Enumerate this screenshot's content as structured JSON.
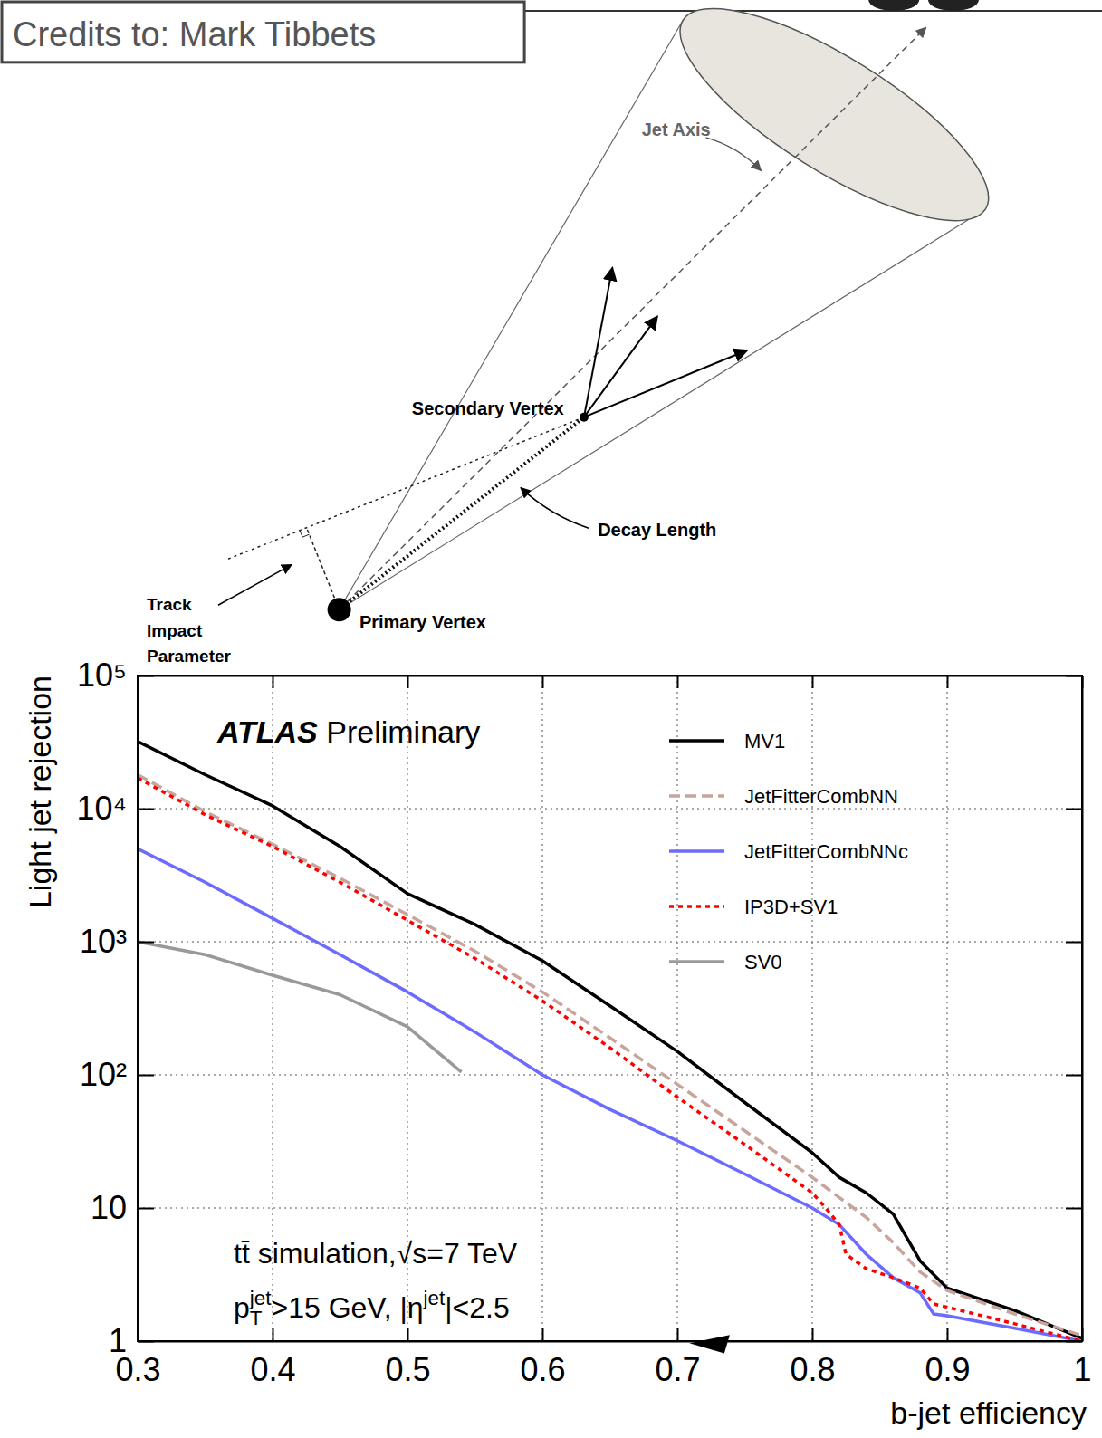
{
  "diagram": {
    "credit": "Credits to: Mark Tibbets",
    "labels": {
      "jet_axis": "Jet Axis",
      "secondary_vertex": "Secondary Vertex",
      "decay_length": "Decay Length",
      "track_impact_parameter": [
        "Track",
        "Impact",
        "Parameter"
      ],
      "primary_vertex": "Primary Vertex"
    }
  },
  "chart_data": {
    "type": "line",
    "title": "ATLAS Preliminary",
    "x_label": "b-jet efficiency",
    "y_label": "Light jet rejection",
    "annotations": [
      [
        "tt̄ simulation,√s=7 TeV"
      ],
      [
        "p",
        {
          "sub": "T",
          "sup": "jet"
        },
        ">15 GeV, |η",
        {
          "sup": "jet"
        },
        "|<2.5"
      ]
    ],
    "xlim": [
      0.3,
      1
    ],
    "xticks": [
      0.3,
      0.4,
      0.5,
      0.6,
      0.7,
      0.8,
      0.9,
      1
    ],
    "ylim": [
      1,
      100000
    ],
    "yticks": [
      1,
      10,
      {
        "value": 100,
        "label": "10²"
      },
      {
        "value": 1000,
        "label": "10³"
      },
      {
        "value": 10000,
        "label": "10⁴"
      },
      {
        "value": 100000,
        "label": "10⁵"
      }
    ],
    "log": "y",
    "grid": true,
    "legend": "upper right",
    "series": [
      {
        "name": "MV1",
        "color": "#000000",
        "line_style": "solid",
        "x": [
          0.3,
          0.35,
          0.4,
          0.45,
          0.5,
          0.55,
          0.6,
          0.65,
          0.7,
          0.75,
          0.8,
          0.82,
          0.84,
          0.86,
          0.87,
          0.88,
          0.9,
          0.95,
          1.0
        ],
        "values": [
          32000,
          18000,
          10500,
          5200,
          2300,
          1350,
          720,
          330,
          150,
          62,
          26,
          17,
          13,
          9,
          6,
          4,
          2.5,
          1.7,
          1.05
        ]
      },
      {
        "name": "JetFitterCombNN",
        "color": "#c8a49c",
        "line_style": "dashed",
        "x": [
          0.3,
          0.35,
          0.4,
          0.45,
          0.5,
          0.55,
          0.6,
          0.65,
          0.7,
          0.75,
          0.8,
          0.82,
          0.84,
          0.86,
          0.88,
          0.9,
          0.95,
          1.0
        ],
        "values": [
          18000,
          9500,
          5400,
          3000,
          1600,
          850,
          420,
          190,
          85,
          38,
          17,
          12,
          8.5,
          5.5,
          3.3,
          2.4,
          1.6,
          1.1
        ]
      },
      {
        "name": "JetFitterCombNNc",
        "color": "#6b6bff",
        "line_style": "solid",
        "x": [
          0.3,
          0.35,
          0.4,
          0.45,
          0.5,
          0.55,
          0.6,
          0.65,
          0.7,
          0.75,
          0.8,
          0.82,
          0.84,
          0.86,
          0.88,
          0.89,
          0.9,
          0.95,
          1.0
        ],
        "values": [
          5000,
          2800,
          1500,
          800,
          420,
          210,
          100,
          55,
          32,
          18,
          10,
          7.5,
          4.5,
          3,
          2.3,
          1.6,
          1.55,
          1.25,
          1.0
        ]
      },
      {
        "name": "IP3D+SV1",
        "color": "#ff0000",
        "line_style": "dotted",
        "x": [
          0.3,
          0.35,
          0.4,
          0.45,
          0.5,
          0.55,
          0.6,
          0.65,
          0.7,
          0.75,
          0.8,
          0.81,
          0.82,
          0.825,
          0.84,
          0.86,
          0.88,
          0.89,
          0.9,
          0.95,
          1.0
        ],
        "values": [
          17000,
          9000,
          5200,
          2800,
          1450,
          750,
          360,
          160,
          68,
          30,
          13,
          10,
          7.5,
          4.5,
          3.5,
          3,
          2.5,
          1.9,
          1.8,
          1.35,
          1.0
        ]
      },
      {
        "name": "SV0",
        "color": "#999999",
        "line_style": "solid",
        "x": [
          0.3,
          0.35,
          0.4,
          0.45,
          0.5,
          0.54
        ],
        "values": [
          1000,
          800,
          560,
          400,
          230,
          105
        ]
      }
    ]
  }
}
